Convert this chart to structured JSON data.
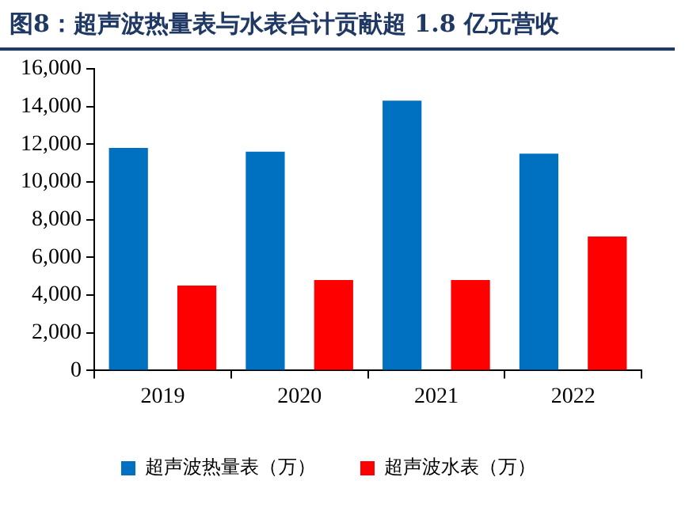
{
  "chart_data": {
    "type": "bar",
    "title": "图8：超声波热量表与水表合计贡献超 1.8 亿元营收",
    "categories": [
      "2019",
      "2020",
      "2021",
      "2022"
    ],
    "series": [
      {
        "name": "超声波热量表（万）",
        "color": "#0070c0",
        "values": [
          11800,
          11600,
          14300,
          11500
        ]
      },
      {
        "name": "超声波水表（万）",
        "color": "#ff0000",
        "values": [
          4500,
          4800,
          4800,
          7100
        ]
      }
    ],
    "ylim": [
      0,
      16000
    ],
    "yticks": [
      0,
      {
        "value": 2000,
        "label": "2,000"
      },
      {
        "value": 4000,
        "label": "4,000"
      },
      {
        "value": 6000,
        "label": "6,000"
      },
      {
        "value": 8000,
        "label": "8,000"
      },
      {
        "value": 10000,
        "label": "10,000"
      },
      {
        "value": 12000,
        "label": "12,000"
      },
      {
        "value": 14000,
        "label": "14,000"
      },
      {
        "value": 16000,
        "label": "16,000"
      }
    ],
    "grid": false,
    "legend": "bottom"
  }
}
